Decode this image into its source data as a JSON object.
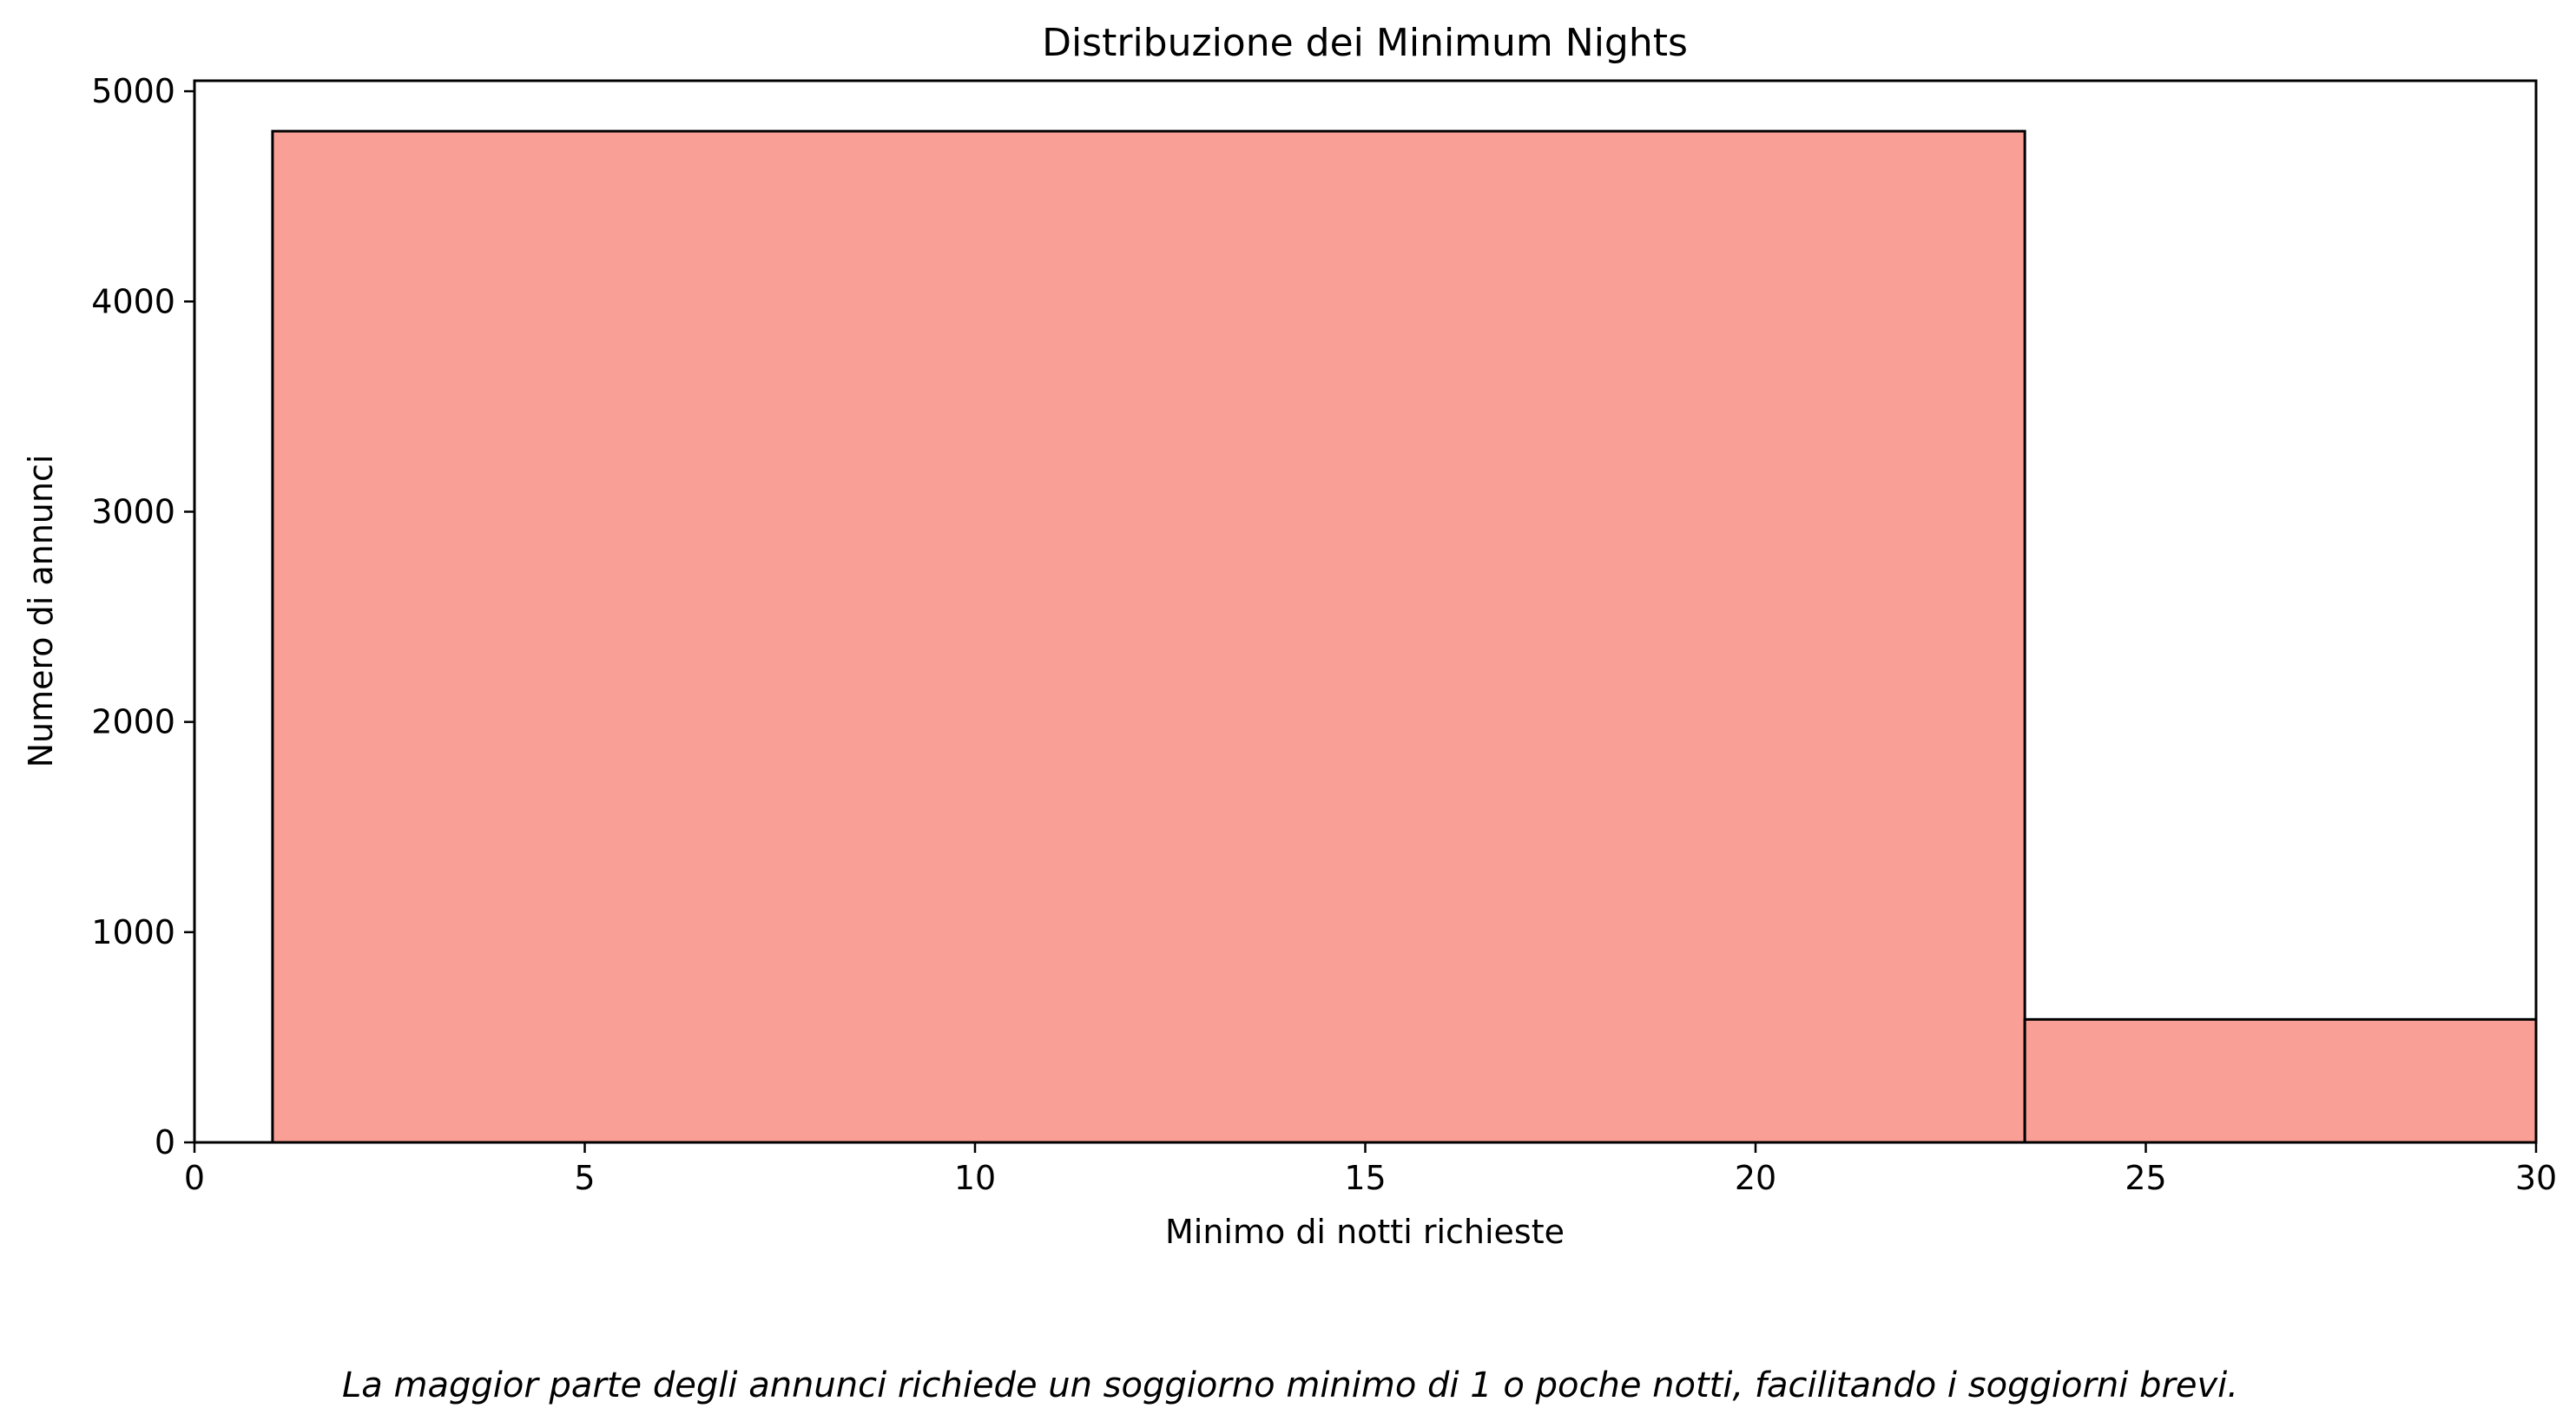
{
  "chart_data": {
    "type": "bar",
    "title": "Distribuzione dei Minimum Nights",
    "xlabel": "Minimo di notti richieste",
    "ylabel": "Numero di annunci",
    "xlim": [
      0,
      30
    ],
    "ylim": [
      0,
      5050
    ],
    "xticks": [
      0,
      5,
      10,
      15,
      20,
      25,
      30
    ],
    "yticks": [
      0,
      1000,
      2000,
      3000,
      4000,
      5000
    ],
    "bins": [
      {
        "x0": 1,
        "x1": 23.45,
        "count": 4810
      },
      {
        "x0": 23.45,
        "x1": 30,
        "count": 585
      }
    ],
    "bar_color": "#fa9f95",
    "edge_color": "#000000",
    "grid": false,
    "legend": "none",
    "caption": "La maggior parte degli annunci richiede un soggiorno minimo di 1 o poche notti, facilitando i soggiorni brevi."
  }
}
